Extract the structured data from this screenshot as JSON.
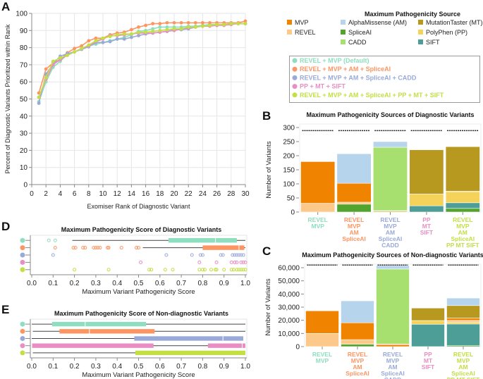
{
  "colors": {
    "MVP": "#f08300",
    "REVEL": "#fdc98a",
    "AlphaMissense": "#b6d4ec",
    "SpliceAI": "#53a32f",
    "CADD": "#a8e06f",
    "MutationTaster": "#b8991f",
    "PolyPhen": "#f5d35b",
    "SIFT": "#4e9e98",
    "combo1": "#8ddfbf",
    "combo2": "#fd9562",
    "combo3": "#9aaad8",
    "combo4": "#e88ec2",
    "combo5": "#c2df44"
  },
  "source_legend": {
    "title": "Maximum Pathogenicity Source",
    "items": [
      {
        "label": "MVP",
        "key": "MVP"
      },
      {
        "label": "REVEL",
        "key": "REVEL"
      },
      {
        "label": "AlphaMissense (AM)",
        "key": "AlphaMissense"
      },
      {
        "label": "SpliceAI",
        "key": "SpliceAI"
      },
      {
        "label": "CADD",
        "key": "CADD"
      },
      {
        "label": "MutationTaster (MT)",
        "key": "MutationTaster"
      },
      {
        "label": "PolyPhen (PP)",
        "key": "PolyPhen"
      },
      {
        "label": "SIFT",
        "key": "SIFT"
      }
    ]
  },
  "combo_legend": {
    "items": [
      {
        "label": "REVEL + MVP (Default)",
        "key": "combo1"
      },
      {
        "label": "REVEL + MVP + AM + SpliceAI",
        "key": "combo2"
      },
      {
        "label": "REVEL + MVP + AM + SpliceAI + CADD",
        "key": "combo3"
      },
      {
        "label": "PP + MT + SIFT",
        "key": "combo4"
      },
      {
        "label": "REVEL + MVP + AM + SpliceAI + PP + MT + SIFT",
        "key": "combo5"
      }
    ]
  },
  "combo_axis_labels": [
    [
      "REVEL",
      "MVP"
    ],
    [
      "REVEL",
      "MVP",
      "AM",
      "SpliceAI"
    ],
    [
      "REVEL",
      "MVP",
      "AM",
      "SpliceAI",
      "CADD"
    ],
    [
      "PP",
      "MT",
      "SIFT"
    ],
    [
      "REVEL",
      "MVP",
      "AM",
      "SpliceAI",
      "PP MT SIFT"
    ]
  ],
  "panels": {
    "A": "A",
    "B": "B",
    "C": "C",
    "D": "D",
    "E": "E"
  },
  "chart_data": [
    {
      "id": "A",
      "type": "line",
      "title": "",
      "xlabel": "Exomiser Rank of Diagnostic Variant",
      "ylabel": "Percent of Diagnostic Variants Prioritized within Rank",
      "xlim": [
        0,
        30
      ],
      "ylim": [
        0,
        100
      ],
      "xticks": [
        0,
        2,
        4,
        6,
        8,
        10,
        12,
        14,
        16,
        18,
        20,
        22,
        24,
        26,
        28,
        30
      ],
      "yticks": [
        0,
        10,
        20,
        30,
        40,
        50,
        60,
        70,
        80,
        90,
        100
      ],
      "grid": true,
      "x": [
        1,
        2,
        3,
        4,
        5,
        6,
        7,
        8,
        9,
        10,
        11,
        12,
        13,
        14,
        15,
        16,
        17,
        18,
        19,
        20,
        21,
        22,
        23,
        24,
        25,
        26,
        27,
        28,
        29,
        30
      ],
      "series": [
        {
          "name": "REVEL + MVP (Default)",
          "key": "combo1",
          "values": [
            48.5,
            60,
            68.5,
            72,
            76,
            77.5,
            79.5,
            81,
            82,
            83,
            84,
            85,
            86,
            87.5,
            89.5,
            90,
            91,
            92,
            92,
            92,
            92,
            92.5,
            92.5,
            93,
            93.5,
            93.5,
            93.5,
            94,
            94,
            94
          ]
        },
        {
          "name": "REVEL + MVP + AM + SpliceAI",
          "key": "combo2",
          "values": [
            53.5,
            67.5,
            71,
            73,
            77,
            79.5,
            81,
            84,
            85.5,
            85.5,
            87.5,
            88.5,
            89,
            90.5,
            92,
            93,
            94,
            94,
            94.5,
            94.5,
            94.5,
            94.5,
            94.5,
            94.5,
            94.5,
            94.5,
            94.5,
            94.5,
            94.5,
            95.5
          ]
        },
        {
          "name": "REVEL + MVP + AM + SpliceAI + CADD",
          "key": "combo3",
          "values": [
            47.5,
            64.5,
            70.5,
            75,
            76.5,
            77.5,
            79,
            80.5,
            83,
            83,
            83.5,
            85,
            85,
            86,
            87,
            88,
            88.5,
            89,
            89.5,
            90.5,
            90.5,
            91,
            92,
            92.5,
            93,
            93,
            93.5,
            94,
            94,
            94
          ]
        },
        {
          "name": "PP + MT + SIFT",
          "key": "combo4",
          "values": [
            51,
            61.5,
            70,
            73,
            75.5,
            77.5,
            79.5,
            81,
            83.5,
            85,
            87,
            87,
            87.5,
            88,
            88.5,
            88.5,
            88.5,
            89,
            89.5,
            90,
            91,
            91.5,
            92,
            92.5,
            92.5,
            93,
            93,
            93.5,
            94,
            94
          ]
        },
        {
          "name": "REVEL + MVP + AM + SpliceAI + PP + MT + SIFT",
          "key": "combo5",
          "values": [
            51,
            62.5,
            72,
            74,
            75.5,
            77.5,
            79.5,
            81.5,
            84,
            85.5,
            86.5,
            87.5,
            88,
            88,
            89,
            89,
            89.5,
            90,
            90.5,
            91,
            91,
            92,
            92,
            92.5,
            93,
            93.5,
            93.5,
            94,
            94,
            94
          ]
        }
      ]
    },
    {
      "id": "B",
      "type": "bar",
      "stacked": true,
      "title": "Maximum Pathogenicity Sources of Diagnostic Variants",
      "ylabel": "Number of Variants",
      "ylim": [
        0,
        300
      ],
      "yticks": [
        0,
        50,
        100,
        150,
        200,
        250,
        300
      ],
      "total_line": 289,
      "categories": [
        "REVEL MVP",
        "REVEL MVP AM SpliceAI",
        "REVEL MVP AM SpliceAI CADD",
        "PP MT SIFT",
        "REVEL MVP AM SpliceAI PP MT SIFT"
      ],
      "bars": [
        [
          {
            "source": "REVEL",
            "value": 31
          },
          {
            "source": "MVP",
            "value": 148
          }
        ],
        [
          {
            "source": "SpliceAI",
            "value": 28
          },
          {
            "source": "REVEL",
            "value": 7
          },
          {
            "source": "MVP",
            "value": 67
          },
          {
            "source": "AlphaMissense",
            "value": 105
          }
        ],
        [
          {
            "source": "MutationTaster",
            "value": 3
          },
          {
            "source": "MVP",
            "value": 2
          },
          {
            "source": "CADD",
            "value": 225
          },
          {
            "source": "AlphaMissense",
            "value": 20
          }
        ],
        [
          {
            "source": "SIFT",
            "value": 22
          },
          {
            "source": "PolyPhen",
            "value": 42
          },
          {
            "source": "MutationTaster",
            "value": 157
          }
        ],
        [
          {
            "source": "SpliceAI",
            "value": 13
          },
          {
            "source": "SIFT",
            "value": 20
          },
          {
            "source": "PolyPhen",
            "value": 39
          },
          {
            "source": "MVP",
            "value": 2
          },
          {
            "source": "MutationTaster",
            "value": 158
          }
        ]
      ]
    },
    {
      "id": "C",
      "type": "bar",
      "stacked": true,
      "title": "Maximum Pathogenicity Sources of Non-diagnostic Variants",
      "ylabel": "Number of Variants",
      "ylim": [
        0,
        60000
      ],
      "yticks": [
        0,
        10000,
        20000,
        30000,
        40000,
        50000,
        60000
      ],
      "ytick_labels": [
        "0",
        "10,000",
        "20,000",
        "30,000",
        "40,000",
        "50,000",
        "60,000"
      ],
      "total_line": 62000,
      "categories": [
        "REVEL MVP",
        "REVEL MVP AM SpliceAI",
        "REVEL MVP AM SpliceAI CADD",
        "PP MT SIFT",
        "REVEL MVP AM SpliceAI PP MT SIFT"
      ],
      "bars": [
        [
          {
            "source": "REVEL",
            "value": 10000
          },
          {
            "source": "MVP",
            "value": 17200
          }
        ],
        [
          {
            "source": "SpliceAI",
            "value": 1800
          },
          {
            "source": "REVEL",
            "value": 3500
          },
          {
            "source": "MVP",
            "value": 12800
          },
          {
            "source": "AlphaMissense",
            "value": 16700
          }
        ],
        [
          {
            "source": "MVP",
            "value": 1500
          },
          {
            "source": "REVEL",
            "value": 500
          },
          {
            "source": "CADD",
            "value": 57000
          },
          {
            "source": "AlphaMissense",
            "value": 2600
          }
        ],
        [
          {
            "source": "SIFT",
            "value": 17000
          },
          {
            "source": "PolyPhen",
            "value": 2800
          },
          {
            "source": "MutationTaster",
            "value": 9500
          }
        ],
        [
          {
            "source": "SpliceAI",
            "value": 700
          },
          {
            "source": "SIFT",
            "value": 16500
          },
          {
            "source": "PolyPhen",
            "value": 1200
          },
          {
            "source": "REVEL",
            "value": 1500
          },
          {
            "source": "MVP",
            "value": 1800
          },
          {
            "source": "MutationTaster",
            "value": 9500
          },
          {
            "source": "AlphaMissense",
            "value": 5700
          }
        ]
      ]
    },
    {
      "id": "D",
      "type": "box",
      "title": "Maximum Pathogenicity Score of Diagnostic Variants",
      "xlabel": "Maximum Variant Pathogenicity Score",
      "xlim": [
        0,
        1
      ],
      "xticks": [
        0,
        0.1,
        0.2,
        0.3,
        0.4,
        0.5,
        0.6,
        0.7,
        0.8,
        0.9,
        1.0
      ],
      "xtick_labels": [
        "0.0",
        "0.1",
        "0.2",
        "0.3",
        "0.4",
        "0.5",
        "0.6",
        "0.7",
        "0.8",
        "0.9",
        "1.0"
      ],
      "boxes": [
        {
          "key": "combo1",
          "whisker_low": 0.19,
          "q1": 0.64,
          "median": 0.86,
          "q3": 0.96,
          "whisker_high": 1.0,
          "outliers": [
            0.08,
            0.11
          ]
        },
        {
          "key": "combo2",
          "whisker_low": 0.52,
          "q1": 0.8,
          "median": 0.97,
          "q3": 0.995,
          "whisker_high": 1.0,
          "outliers": [
            0.11,
            0.195,
            0.205,
            0.24,
            0.25,
            0.29,
            0.3,
            0.31,
            0.32,
            0.355,
            0.36,
            0.42,
            0.49,
            0.5
          ]
        },
        {
          "key": "combo3",
          "whisker_low": 0.995,
          "q1": 0.997,
          "median": 0.999,
          "q3": 1.0,
          "whisker_high": 1.0,
          "outliers": [
            0.1,
            0.63,
            0.75,
            0.79,
            0.8,
            0.885,
            0.895,
            0.94,
            0.95,
            0.96,
            0.97,
            0.98,
            0.99
          ]
        },
        {
          "key": "combo4",
          "whisker_low": 1.0,
          "q1": 1.0,
          "median": 1.0,
          "q3": 1.0,
          "whisker_high": 1.0,
          "outliers": [
            0.51,
            0.785,
            0.865,
            0.935,
            0.95,
            0.96,
            0.98,
            0.99,
            1.0
          ]
        },
        {
          "key": "combo5",
          "whisker_low": 1.0,
          "q1": 1.0,
          "median": 1.0,
          "q3": 1.0,
          "whisker_high": 1.0,
          "outliers": [
            0.2,
            0.36,
            0.55,
            0.56,
            0.625,
            0.66,
            0.785,
            0.8,
            0.81,
            0.84,
            0.86,
            0.865,
            0.9,
            0.935,
            0.945,
            0.96,
            0.97,
            0.98,
            0.99,
            1.0
          ]
        }
      ]
    },
    {
      "id": "E",
      "type": "box",
      "title": "Maximum Pathogenicity Score of Non-diagnostic Variants",
      "xlabel": "Maximum Variant Pathogenicity Score",
      "xlim": [
        0,
        1
      ],
      "xticks": [
        0,
        0.1,
        0.2,
        0.3,
        0.4,
        0.5,
        0.6,
        0.7,
        0.8,
        0.9,
        1.0
      ],
      "xtick_labels": [
        "0.0",
        "0.1",
        "0.2",
        "0.3",
        "0.4",
        "0.5",
        "0.6",
        "0.7",
        "0.8",
        "0.9",
        "1.0"
      ],
      "boxes": [
        {
          "key": "combo1",
          "whisker_low": 0.0,
          "q1": 0.095,
          "median": 0.25,
          "q3": 0.535,
          "whisker_high": 1.0,
          "outliers": []
        },
        {
          "key": "combo2",
          "whisker_low": 0.005,
          "q1": 0.13,
          "median": 0.27,
          "q3": 0.575,
          "whisker_high": 1.0,
          "outliers": []
        },
        {
          "key": "combo3",
          "whisker_low": 0.0,
          "q1": 0.48,
          "median": 0.895,
          "q3": 0.99,
          "whisker_high": 0.99,
          "outliers": []
        },
        {
          "key": "combo4",
          "whisker_low": 0.0,
          "q1": 0.0,
          "median": 0.0,
          "q3": 0.57,
          "whisker_high": 0.825,
          "q1b": 0.825,
          "median2": 0.985,
          "q3b": 1.0,
          "outliers": []
        },
        {
          "key": "combo5",
          "whisker_low": 0.005,
          "q1": 0.485,
          "median": 1.0,
          "q3": 1.0,
          "whisker_high": 1.0,
          "outliers": []
        }
      ]
    }
  ]
}
